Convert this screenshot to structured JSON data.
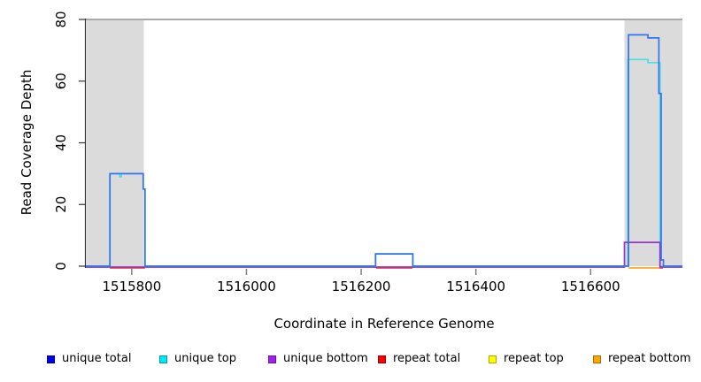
{
  "figure": {
    "x_axis_title": "Coordinate in Reference Genome",
    "y_axis_title": "Read Coverage Depth"
  },
  "chart_data": {
    "type": "line",
    "subtype": "step-coverage",
    "title": "",
    "xlabel": "Coordinate in Reference Genome",
    "ylabel": "Read Coverage Depth",
    "xlim": [
      1515720,
      1516760
    ],
    "ylim": [
      0,
      80
    ],
    "xticks": [
      1515800,
      1516000,
      1516200,
      1516400,
      1516600
    ],
    "yticks": [
      0,
      20,
      40,
      60,
      80
    ],
    "grid": false,
    "legend_position": "bottom",
    "shaded_regions": [
      {
        "x0": 1515721,
        "x1": 1515821,
        "color": "#DBDBDB"
      },
      {
        "x0": 1516659,
        "x1": 1516760,
        "color": "#DBDBDB"
      }
    ],
    "top_boundary_line": {
      "y": 80,
      "color": "#A9A9A9"
    },
    "legend": [
      {
        "label": "unique total",
        "fill": "#0000F0",
        "border": "#000099"
      },
      {
        "label": "unique top",
        "fill": "#00E8F0",
        "border": "#009DA8"
      },
      {
        "label": "unique bottom",
        "fill": "#A020F0",
        "border": "#6A14A6"
      },
      {
        "label": "repeat total",
        "fill": "#FF0000",
        "border": "#990000"
      },
      {
        "label": "repeat top",
        "fill": "#FFFF00",
        "border": "#A8A800"
      },
      {
        "label": "repeat bottom",
        "fill": "#FFA500",
        "border": "#A86E00"
      }
    ],
    "series": [
      {
        "name": "repeat top",
        "color": "#FFFF00",
        "segments": [
          [
            [
              1515762,
              0
            ],
            [
              1515823,
              0
            ]
          ],
          [
            [
              1516226,
              0
            ],
            [
              1516289,
              0
            ]
          ]
        ]
      },
      {
        "name": "repeat total",
        "color": "#EE4444",
        "segments": [
          [
            [
              1515762,
              0
            ],
            [
              1515823,
              0
            ]
          ],
          [
            [
              1516226,
              0
            ],
            [
              1516289,
              0
            ]
          ],
          [
            [
              1516719,
              0
            ],
            [
              1516726,
              0
            ]
          ]
        ]
      },
      {
        "name": "repeat bottom",
        "color": "#FFA41E",
        "segments": [
          [
            [
              1516666,
              0
            ],
            [
              1516720,
              0
            ]
          ]
        ]
      },
      {
        "name": "unique top",
        "color": "#4FDDE4",
        "segments": [
          [
            [
              1515720,
              0
            ],
            [
              1515762,
              0
            ],
            [
              1515762,
              30
            ],
            [
              1515779,
              30
            ],
            [
              1515779,
              29
            ],
            [
              1515782,
              29
            ],
            [
              1515782,
              30
            ],
            [
              1515820,
              30
            ],
            [
              1515820,
              25
            ],
            [
              1515823,
              25
            ],
            [
              1515823,
              0
            ],
            [
              1516225,
              0
            ],
            [
              1516225,
              4
            ],
            [
              1516290,
              4
            ],
            [
              1516290,
              0
            ],
            [
              1516665,
              0
            ],
            [
              1516665,
              67
            ],
            [
              1516700,
              67
            ],
            [
              1516700,
              66
            ],
            [
              1516721,
              66
            ],
            [
              1516721,
              0
            ],
            [
              1516760,
              0
            ]
          ]
        ]
      },
      {
        "name": "unique bottom",
        "color": "#9932CC",
        "segments": [
          [
            [
              1515720,
              0
            ],
            [
              1516659,
              0
            ],
            [
              1516659,
              8
            ],
            [
              1516721,
              8
            ],
            [
              1516721,
              0
            ],
            [
              1516760,
              0
            ]
          ]
        ]
      },
      {
        "name": "unique total",
        "color": "#3672EE",
        "segments": [
          [
            [
              1515720,
              0
            ],
            [
              1515762,
              0
            ],
            [
              1515762,
              30
            ],
            [
              1515820,
              30
            ],
            [
              1515820,
              25
            ],
            [
              1515823,
              25
            ],
            [
              1515823,
              0
            ],
            [
              1516225,
              0
            ],
            [
              1516225,
              4
            ],
            [
              1516290,
              4
            ],
            [
              1516290,
              0
            ],
            [
              1516666,
              0
            ],
            [
              1516666,
              75
            ],
            [
              1516700,
              75
            ],
            [
              1516700,
              74
            ],
            [
              1516719,
              74
            ],
            [
              1516719,
              56
            ],
            [
              1516723,
              56
            ],
            [
              1516723,
              2
            ],
            [
              1516727,
              2
            ],
            [
              1516727,
              0
            ],
            [
              1516760,
              0
            ]
          ]
        ]
      }
    ]
  }
}
